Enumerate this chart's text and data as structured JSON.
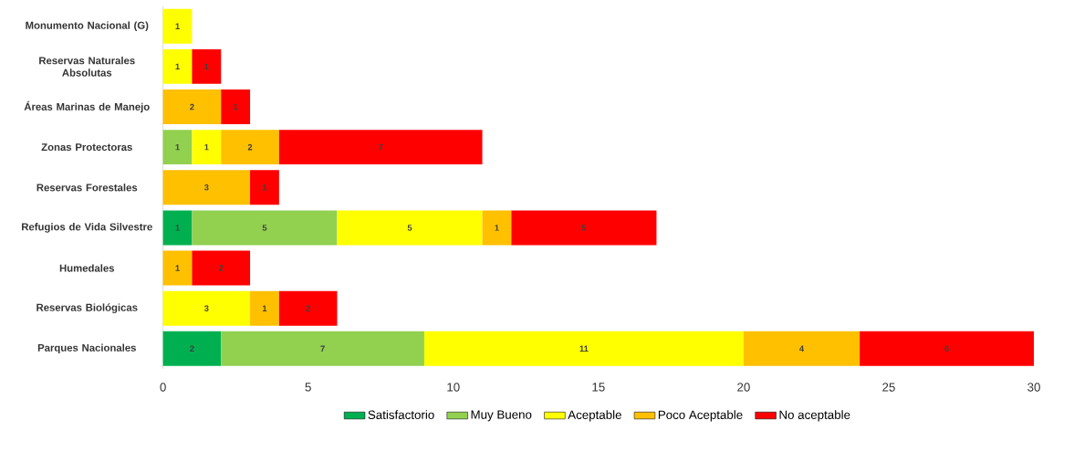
{
  "chart_data": {
    "type": "bar",
    "orientation": "horizontal",
    "stacked": true,
    "data_labels": true,
    "legend": "bottom",
    "categories": [
      "Monumento Nacional (G)",
      "Reservas Naturales Absolutas",
      "Áreas Marinas de Manejo",
      "Zonas Protectoras",
      "Reservas Forestales",
      "Refugios de Vida Silvestre",
      "Humedales",
      "Reservas Biológicas",
      "Parques Nacionales"
    ],
    "xlim": [
      0,
      30
    ],
    "xticks": [
      0,
      5,
      10,
      15,
      20,
      25,
      30
    ],
    "series": [
      {
        "name": "Satisfactorio",
        "color": "#00b050",
        "values": [
          null,
          null,
          null,
          null,
          null,
          1,
          null,
          null,
          2
        ]
      },
      {
        "name": "Muy Bueno",
        "color": "#92d050",
        "values": [
          null,
          null,
          null,
          1,
          null,
          5,
          null,
          null,
          7
        ]
      },
      {
        "name": "Aceptable",
        "color": "#ffff00",
        "values": [
          1,
          1,
          null,
          1,
          null,
          5,
          null,
          3,
          11
        ]
      },
      {
        "name": "Poco Aceptable",
        "color": "#ffc000",
        "values": [
          null,
          null,
          2,
          2,
          3,
          1,
          1,
          1,
          4
        ]
      },
      {
        "name": "No aceptable",
        "color": "#ff0000",
        "values": [
          null,
          1,
          1,
          7,
          1,
          5,
          2,
          2,
          6
        ]
      }
    ]
  }
}
